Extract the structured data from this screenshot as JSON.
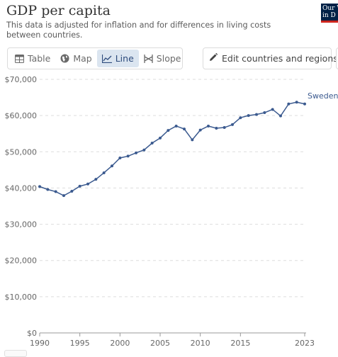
{
  "header": {
    "title": "GDP per capita",
    "subtitle": "This data is adjusted for inflation and for differences in living costs between countries.",
    "logo_text": "Our W\nin D"
  },
  "tabs": [
    {
      "label": "Table",
      "icon": "table-icon",
      "active": false
    },
    {
      "label": "Map",
      "icon": "globe-icon",
      "active": false
    },
    {
      "label": "Line",
      "icon": "line-chart-icon",
      "active": true
    },
    {
      "label": "Slope",
      "icon": "slope-icon",
      "active": false
    }
  ],
  "edit_button": {
    "label": "Edit countries and regions",
    "icon": "pencil-icon"
  },
  "colors": {
    "series": "#3b5a8f",
    "grid": "#dddddd",
    "active_tab_bg": "#dbe5f0",
    "logo_bg": "#002147",
    "logo_bar": "#ce261e"
  },
  "chart_data": {
    "type": "line",
    "title": "GDP per capita",
    "xlabel": "",
    "ylabel": "",
    "ylim": [
      0,
      70000
    ],
    "xlim": [
      1990,
      2023
    ],
    "y_ticks": [
      {
        "value": 0,
        "label": "$0"
      },
      {
        "value": 10000,
        "label": "$10,000"
      },
      {
        "value": 20000,
        "label": "$20,000"
      },
      {
        "value": 30000,
        "label": "$30,000"
      },
      {
        "value": 40000,
        "label": "$40,000"
      },
      {
        "value": 50000,
        "label": "$50,000"
      },
      {
        "value": 60000,
        "label": "$60,000"
      },
      {
        "value": 70000,
        "label": "$70,000"
      }
    ],
    "x_ticks": [
      {
        "value": 1990,
        "label": "1990"
      },
      {
        "value": 1995,
        "label": "1995"
      },
      {
        "value": 2000,
        "label": "2000"
      },
      {
        "value": 2005,
        "label": "2005"
      },
      {
        "value": 2010,
        "label": "2010"
      },
      {
        "value": 2015,
        "label": "2015"
      },
      {
        "value": 2023,
        "label": "2023"
      }
    ],
    "grid": "horizontal dashed",
    "legend": "inline label at line end",
    "series": [
      {
        "name": "Sweden",
        "x": [
          1990,
          1991,
          1992,
          1993,
          1994,
          1995,
          1996,
          1997,
          1998,
          1999,
          2000,
          2001,
          2002,
          2003,
          2004,
          2005,
          2006,
          2007,
          2008,
          2009,
          2010,
          2011,
          2012,
          2013,
          2014,
          2015,
          2016,
          2017,
          2018,
          2019,
          2020,
          2021,
          2022,
          2023
        ],
        "y": [
          40400,
          39600,
          39000,
          37900,
          39100,
          40500,
          41100,
          42400,
          44200,
          46100,
          48300,
          48800,
          49700,
          50500,
          52400,
          53800,
          55900,
          57100,
          56300,
          53300,
          56000,
          57100,
          56500,
          56700,
          57500,
          59400,
          60000,
          60300,
          60800,
          61700,
          59900,
          63200,
          63700,
          63200
        ]
      }
    ]
  }
}
